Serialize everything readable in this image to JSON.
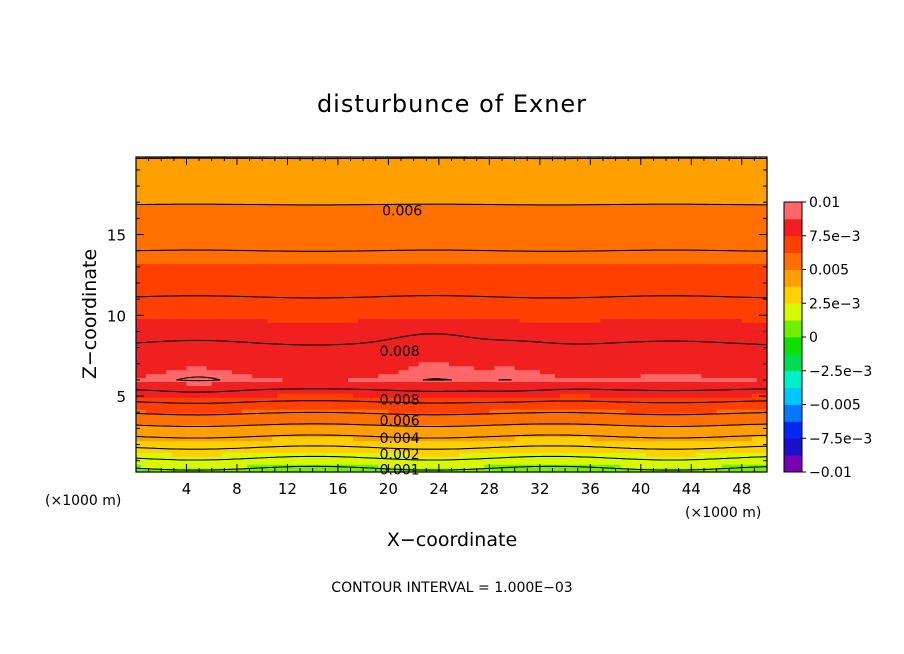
{
  "chart_data": {
    "type": "contour",
    "title": "disturbunce of Exner",
    "xlabel": "X−coordinate",
    "ylabel": "Z−coordinate",
    "x_unit_left": "(×1000 m)",
    "x_unit_right": "(×1000 m)",
    "xlim": [
      0,
      50
    ],
    "ylim": [
      0.3,
      19.8
    ],
    "x_ticks": [
      {
        "value": 4,
        "label": "4"
      },
      {
        "value": 8,
        "label": "8"
      },
      {
        "value": 12,
        "label": "12"
      },
      {
        "value": 16,
        "label": "16"
      },
      {
        "value": 20,
        "label": "20"
      },
      {
        "value": 24,
        "label": "24"
      },
      {
        "value": 28,
        "label": "28"
      },
      {
        "value": 32,
        "label": "32"
      },
      {
        "value": 36,
        "label": "36"
      },
      {
        "value": 40,
        "label": "40"
      },
      {
        "value": 44,
        "label": "44"
      },
      {
        "value": 48,
        "label": "48"
      }
    ],
    "y_ticks": [
      {
        "value": 5,
        "label": "5"
      },
      {
        "value": 10,
        "label": "10"
      },
      {
        "value": 15,
        "label": "15"
      }
    ],
    "contour_interval": 0.001,
    "contour_labels": [
      {
        "text": "0.006",
        "x": 19.5,
        "z": 16.5
      },
      {
        "text": "0.008",
        "x": 19.3,
        "z": 7.8
      },
      {
        "text": "0.008",
        "x": 19.3,
        "z": 4.8
      },
      {
        "text": "0.006",
        "x": 19.3,
        "z": 3.5
      },
      {
        "text": "0.004",
        "x": 19.3,
        "z": 2.4
      },
      {
        "text": "0.002",
        "x": 19.3,
        "z": 1.4
      },
      {
        "text": "0.001",
        "x": 19.3,
        "z": 0.45
      }
    ],
    "colorbar": {
      "min": -0.01,
      "max": 0.01,
      "colors": [
        "#7a00b4",
        "#1a10c8",
        "#0028f0",
        "#0078ff",
        "#00c8ff",
        "#00f0c8",
        "#00dc50",
        "#10e000",
        "#70f000",
        "#d8f800",
        "#ffd000",
        "#ffa000",
        "#ff7000",
        "#ff4000",
        "#f02020",
        "#ff6868"
      ],
      "tick_labels": [
        {
          "value": 0.01,
          "label": "0.01"
        },
        {
          "value": 0.0075,
          "label": "7.5e−3"
        },
        {
          "value": 0.005,
          "label": "0.005"
        },
        {
          "value": 0.0025,
          "label": "2.5e−3"
        },
        {
          "value": 0,
          "label": "0"
        },
        {
          "value": -0.0025,
          "label": "−2.5e−3"
        },
        {
          "value": -0.005,
          "label": "−0.005"
        },
        {
          "value": -0.0075,
          "label": "−7.5e−3"
        },
        {
          "value": -0.01,
          "label": "−0.01"
        }
      ]
    },
    "footer": "CONTOUR INTERVAL = 1.000E−03"
  }
}
